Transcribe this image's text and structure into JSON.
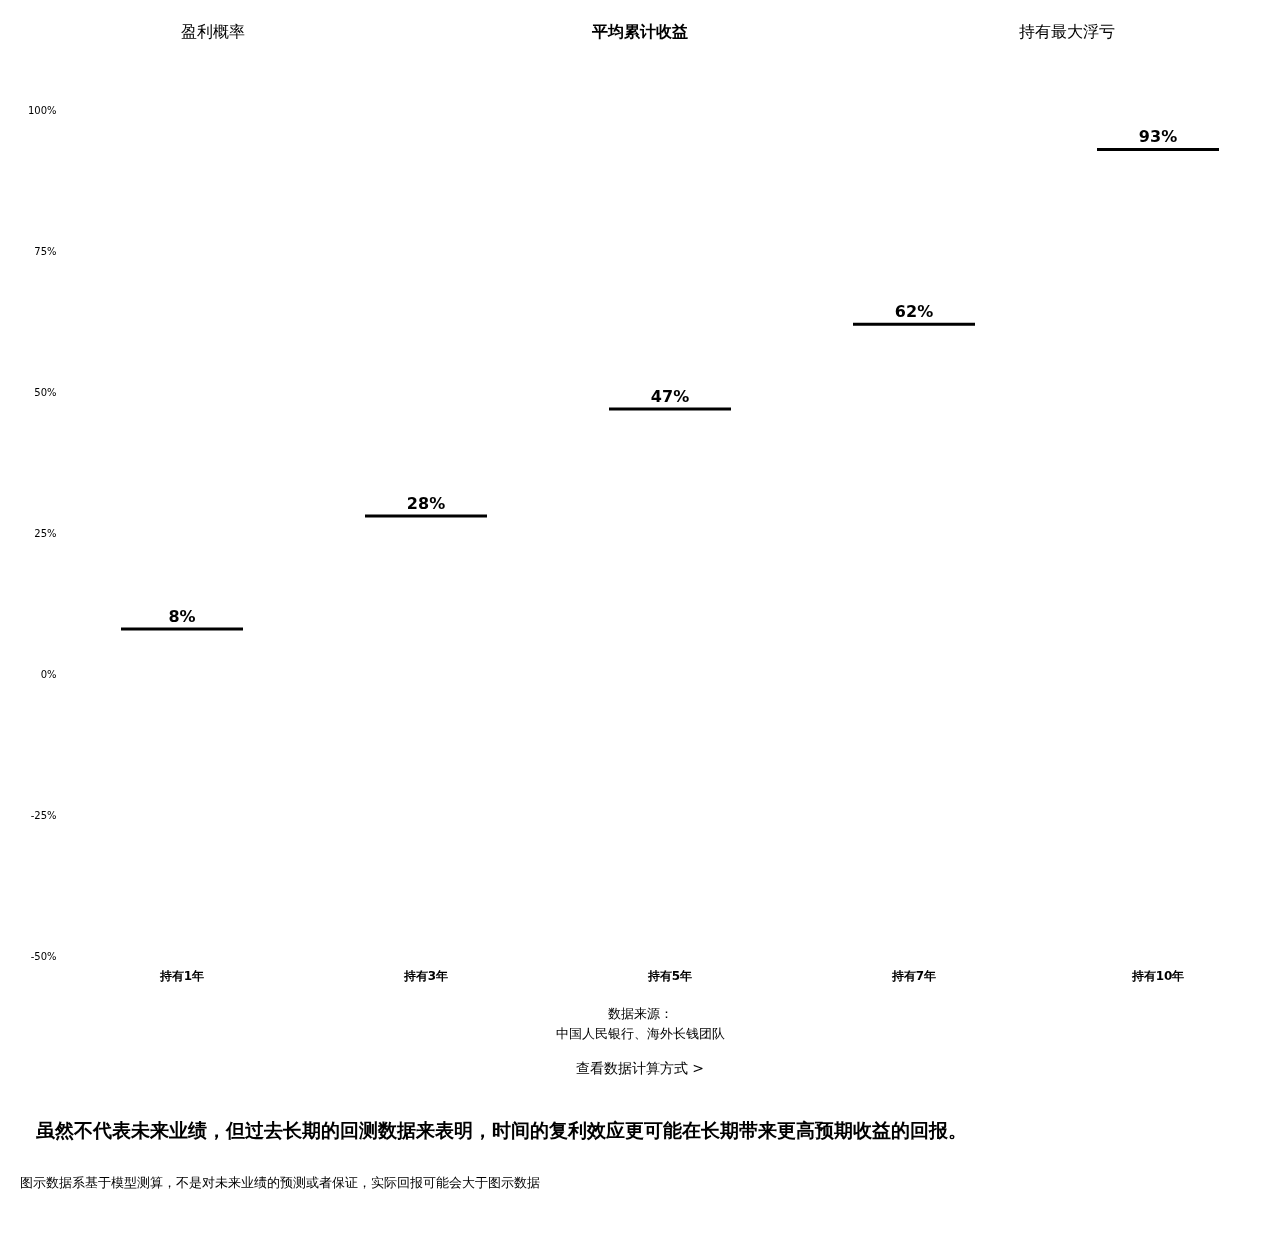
{
  "chart_data": {
    "type": "bar",
    "categories": [
      "持有1年",
      "持有3年",
      "持有5年",
      "持有7年",
      "持有10年"
    ],
    "values": [
      8,
      28,
      47,
      62,
      93
    ],
    "value_labels": [
      "8%",
      "28%",
      "47%",
      "62%",
      "93%"
    ],
    "color": "#000000",
    "ylim": [
      -50,
      100
    ],
    "yticks": [
      {
        "value": -50,
        "label": "-50%"
      },
      {
        "value": -25,
        "label": "-25%"
      },
      {
        "value": 0,
        "label": "0%"
      },
      {
        "value": 25,
        "label": "25%"
      },
      {
        "value": 50,
        "label": "50%"
      },
      {
        "value": 75,
        "label": "75%"
      },
      {
        "value": 100,
        "label": "100%"
      }
    ],
    "annotations": [
      "盈利概率",
      "平均累计收益",
      "持有最大浮亏",
      "数据来源：",
      "中国人民银行、海外长钱团队",
      "查看数据计算方式 >",
      "虽然不代表未来业绩，但过去长期的回测数据来表明，时间的复利效应更可能在长期带来更高预期收益的回报。",
      "图示数据系基于模型测算，不是对未来业绩的预测或者保证，实际回报可能会大于图示数据"
    ]
  }
}
